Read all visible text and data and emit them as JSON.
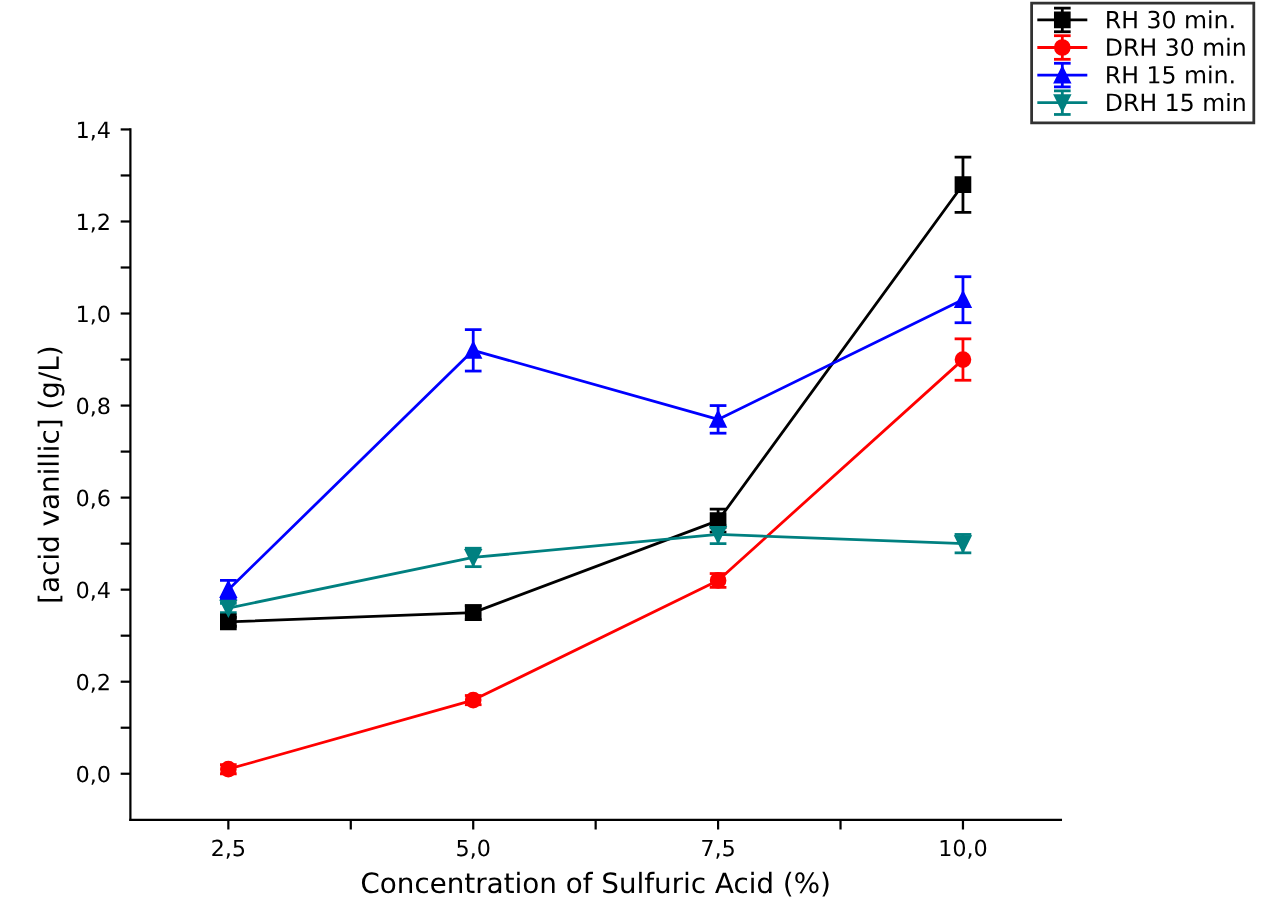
{
  "chart_data": {
    "type": "line",
    "xlabel": "Concentration of Sulfuric Acid (%)",
    "ylabel": "[acid vanillic] (g/L)",
    "x": [
      2.5,
      5.0,
      7.5,
      10.0
    ],
    "series": [
      {
        "name": "RH 30 min.",
        "color": "#000000",
        "marker": "square",
        "values": [
          0.33,
          0.35,
          0.55,
          1.28
        ],
        "errors": [
          0.01,
          0.015,
          0.025,
          0.06
        ]
      },
      {
        "name": "DRH 30 min",
        "color": "#ff0000",
        "marker": "circle",
        "values": [
          0.01,
          0.16,
          0.42,
          0.9
        ],
        "errors": [
          0.01,
          0.01,
          0.015,
          0.045
        ]
      },
      {
        "name": "RH 15 min.",
        "color": "#0000ff",
        "marker": "triangle",
        "values": [
          0.4,
          0.92,
          0.77,
          1.03
        ],
        "errors": [
          0.02,
          0.045,
          0.03,
          0.05
        ]
      },
      {
        "name": "DRH 15 min",
        "color": "#008080",
        "marker": "triangle_down",
        "values": [
          0.36,
          0.47,
          0.52,
          0.5
        ],
        "errors": [
          0.01,
          0.02,
          0.02,
          0.02
        ]
      }
    ],
    "xlim": [
      1.5,
      11.0
    ],
    "ylim": [
      -0.1,
      1.4
    ],
    "xticks": [
      {
        "value": 2.5,
        "label": "2,5"
      },
      {
        "value": 3.75,
        "label": null
      },
      {
        "value": 5.0,
        "label": "5,0"
      },
      {
        "value": 6.25,
        "label": null
      },
      {
        "value": 7.5,
        "label": "7,5"
      },
      {
        "value": 8.75,
        "label": null
      },
      {
        "value": 10.0,
        "label": "10,0"
      }
    ],
    "yticks": [
      {
        "value": 0.0,
        "label": "0,0"
      },
      {
        "value": 0.1,
        "label": null
      },
      {
        "value": 0.2,
        "label": "0,2"
      },
      {
        "value": 0.3,
        "label": null
      },
      {
        "value": 0.4,
        "label": "0,4"
      },
      {
        "value": 0.5,
        "label": null
      },
      {
        "value": 0.6,
        "label": "0,6"
      },
      {
        "value": 0.7,
        "label": null
      },
      {
        "value": 0.8,
        "label": "0,8"
      },
      {
        "value": 0.9,
        "label": null
      },
      {
        "value": 1.0,
        "label": "1,0"
      },
      {
        "value": 1.1,
        "label": null
      },
      {
        "value": 1.2,
        "label": "1,2"
      },
      {
        "value": 1.3,
        "label": null
      },
      {
        "value": 1.4,
        "label": "1,4"
      }
    ],
    "grid": false,
    "legend": "top right",
    "line_style": "solid"
  }
}
